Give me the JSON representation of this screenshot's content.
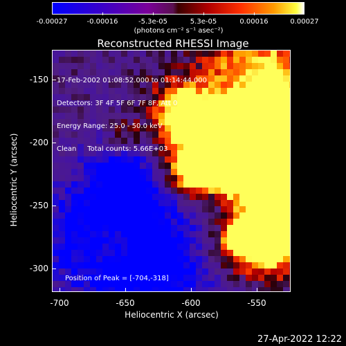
{
  "colorbar": {
    "ticks": [
      "-0.00027",
      "-0.00016",
      "-5.3e-05",
      "5.3e-05",
      "0.00016",
      "0.00027"
    ],
    "units": "(photons cm⁻² s⁻¹ asec⁻²)",
    "min": -0.00027,
    "max": 0.00027
  },
  "title": "Reconstructed RHESSI Image",
  "info": {
    "line1": "17-Feb-2002 01:08:52.000 to 01:14:44.000",
    "line2": "Detectors: 3F 4F 5F 6F 7F 8F, Att 0",
    "line3": "Energy Range: 25.0 - 50.0 keV",
    "line4": "Clean     Total counts: 5.66E+03"
  },
  "peak": "Position of Peak = [-704,-318]",
  "axes": {
    "xlabel": "Heliocentric X (arcsec)",
    "ylabel": "Heliocentric Y (arcsec)",
    "xticks": [
      "-700",
      "-650",
      "-600",
      "-550"
    ],
    "yticks": [
      "-150",
      "-200",
      "-250",
      "-300"
    ],
    "xrange": [
      -710,
      -518
    ],
    "yrange": [
      -320,
      -128
    ]
  },
  "timestamp": "27-Apr-2022 12:22",
  "colors": {
    "background": "#000000",
    "text": "#ffffff",
    "low": "#0000ff",
    "mid": "#3a1a70",
    "high": "#ffff40"
  }
}
